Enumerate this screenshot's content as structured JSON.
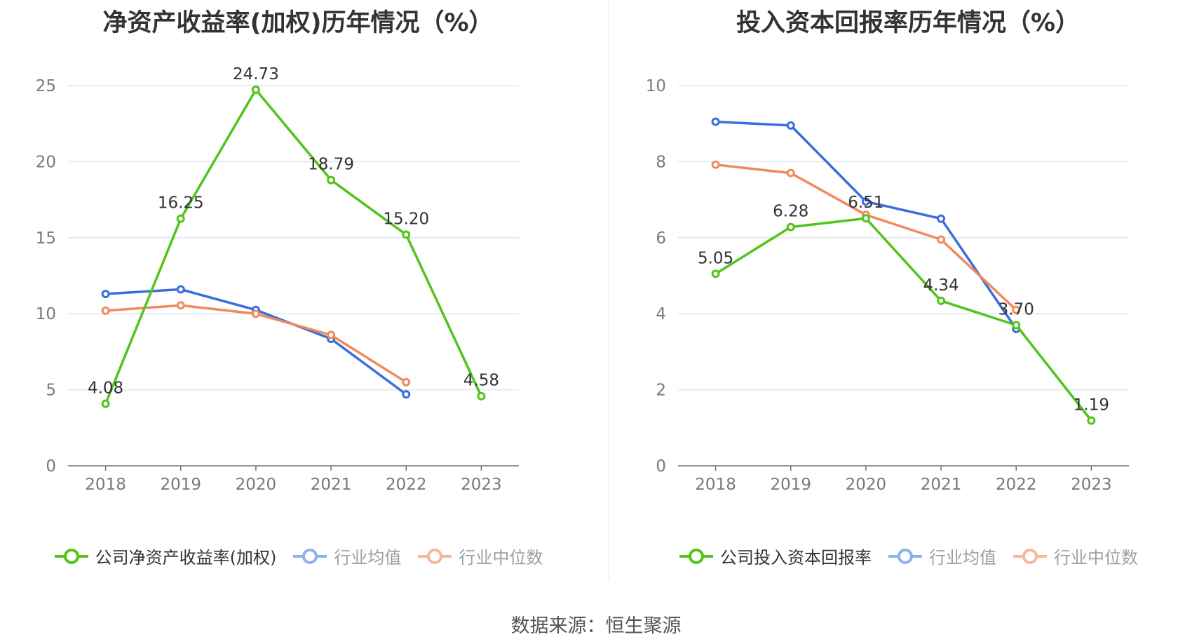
{
  "colors": {
    "company": "#52c41a",
    "industry_avg": "#3a6fdb",
    "industry_median": "#f08a5d"
  },
  "footer": "数据来源：恒生聚源",
  "chart_data": [
    {
      "type": "line",
      "title": "净资产收益率(加权)历年情况（%）",
      "categories": [
        "2018",
        "2019",
        "2020",
        "2021",
        "2022",
        "2023"
      ],
      "ylim": [
        0,
        25
      ],
      "yticks": [
        0,
        5,
        10,
        15,
        20,
        25
      ],
      "series": [
        {
          "key": "company",
          "name": "公司净资产收益率(加权)",
          "values": [
            4.08,
            16.25,
            24.73,
            18.79,
            15.2,
            4.58
          ],
          "labels": [
            "4.08",
            "16.25",
            "24.73",
            "18.79",
            "15.20",
            "4.58"
          ]
        },
        {
          "key": "industry_avg",
          "name": "行业均值",
          "values": [
            11.3,
            11.6,
            10.25,
            8.35,
            4.7,
            null
          ]
        },
        {
          "key": "industry_median",
          "name": "行业中位数",
          "values": [
            10.2,
            10.55,
            10.0,
            8.6,
            5.5,
            null
          ]
        }
      ]
    },
    {
      "type": "line",
      "title": "投入资本回报率历年情况（%）",
      "categories": [
        "2018",
        "2019",
        "2020",
        "2021",
        "2022",
        "2023"
      ],
      "ylim": [
        0,
        10
      ],
      "yticks": [
        0,
        2,
        4,
        6,
        8,
        10
      ],
      "series": [
        {
          "key": "company",
          "name": "公司投入资本回报率",
          "values": [
            5.05,
            6.28,
            6.51,
            4.34,
            3.7,
            1.19
          ],
          "labels": [
            "5.05",
            "6.28",
            "6.51",
            "4.34",
            "3.70",
            "1.19"
          ]
        },
        {
          "key": "industry_avg",
          "name": "行业均值",
          "values": [
            9.05,
            8.95,
            6.95,
            6.5,
            3.6,
            null
          ]
        },
        {
          "key": "industry_median",
          "name": "行业中位数",
          "values": [
            7.92,
            7.7,
            6.6,
            5.95,
            4.1,
            null
          ]
        }
      ]
    }
  ]
}
